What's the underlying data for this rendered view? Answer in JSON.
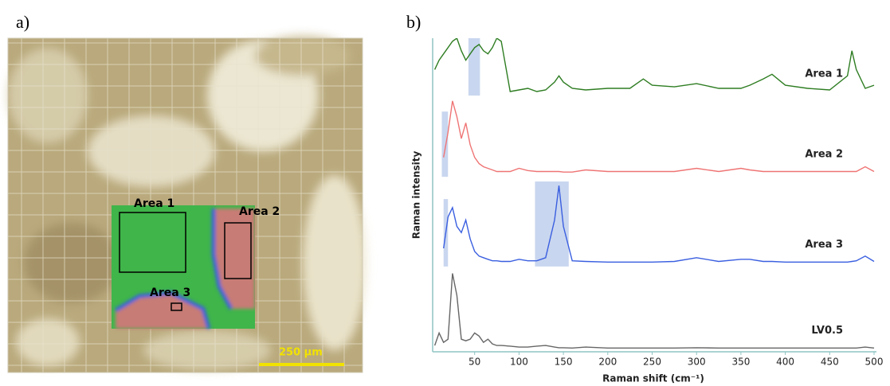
{
  "panel_a": {
    "label": "a)",
    "areas": [
      "Area 1",
      "Area 2",
      "Area 3"
    ],
    "scale_bar": "250 µm"
  },
  "panel_b_label": "b)",
  "chart_data": {
    "type": "line",
    "xlabel": "Raman shift (cm⁻¹)",
    "ylabel": "Raman intensity",
    "xlim": [
      0,
      500
    ],
    "xticks": [
      50,
      100,
      150,
      200,
      250,
      300,
      350,
      400,
      450,
      500
    ],
    "ylim": [
      0,
      100
    ],
    "x": [
      5,
      10,
      15,
      20,
      25,
      30,
      35,
      40,
      45,
      50,
      55,
      60,
      65,
      70,
      75,
      80,
      90,
      100,
      110,
      120,
      130,
      140,
      145,
      150,
      160,
      175,
      200,
      225,
      240,
      250,
      275,
      300,
      325,
      350,
      360,
      375,
      385,
      400,
      425,
      450,
      470,
      475,
      480,
      490,
      500
    ],
    "series": [
      {
        "name": "Area 1",
        "color": "#2e7d22",
        "values": [
          90,
          93,
          95,
          97,
          99,
          100,
          96,
          93,
          95,
          97,
          98,
          96,
          95,
          97,
          100,
          99,
          83,
          83.5,
          84,
          83,
          83.5,
          86,
          88,
          86,
          84,
          83.5,
          84,
          84,
          87,
          85,
          84.5,
          85.5,
          84,
          84,
          85,
          87,
          88.5,
          85,
          84,
          83.5,
          88,
          96,
          90,
          84,
          85
        ]
      },
      {
        "name": "Area 2",
        "color": "#ef7474",
        "values": [
          null,
          null,
          62,
          70,
          80,
          75,
          68,
          73,
          66,
          62,
          60,
          59,
          58.5,
          58,
          57.5,
          57.5,
          57.5,
          58.5,
          57.8,
          57.5,
          57.5,
          57.5,
          57.5,
          57.3,
          57.3,
          58,
          57.5,
          57.5,
          57.5,
          57.5,
          57.5,
          58.5,
          57.5,
          58.5,
          58,
          57.5,
          57.5,
          57.5,
          57.5,
          57.5,
          57.5,
          57.5,
          57.5,
          59,
          57.5
        ]
      },
      {
        "name": "Area 3",
        "color": "#3a5fe0",
        "values": [
          null,
          null,
          33,
          43,
          46,
          40,
          38,
          42,
          36,
          32,
          30.5,
          30,
          29.5,
          29,
          29,
          28.8,
          28.8,
          29.5,
          29,
          29,
          30,
          42,
          53,
          40,
          29,
          28.8,
          28.6,
          28.6,
          28.6,
          28.6,
          28.8,
          30,
          28.8,
          29.5,
          29.5,
          28.8,
          28.8,
          28.6,
          28.6,
          28.6,
          28.6,
          28.8,
          29,
          30.5,
          28.8
        ]
      },
      {
        "name": "LV0.5",
        "color": "#666666",
        "values": [
          2,
          6,
          3,
          4,
          25,
          18,
          4,
          3.5,
          4,
          6,
          5,
          3,
          4,
          2.5,
          2,
          2,
          1.8,
          1.5,
          1.5,
          1.8,
          2,
          1.5,
          1.3,
          1.3,
          1.2,
          1.5,
          1.2,
          1.2,
          1.2,
          1.2,
          1.2,
          1.3,
          1.2,
          1.2,
          1.2,
          1.2,
          1.2,
          1.2,
          1.2,
          1.2,
          1.2,
          1.2,
          1.2,
          1.5,
          1.2
        ]
      }
    ],
    "highlights": [
      {
        "x0": 43,
        "x1": 56,
        "y0": 81.7,
        "y1": 100
      },
      {
        "x0": 13,
        "x1": 20,
        "y0": 55.8,
        "y1": 76.6
      },
      {
        "x0": 15,
        "x1": 20,
        "y0": 27.2,
        "y1": 48.7
      },
      {
        "x0": 118,
        "x1": 156,
        "y0": 27.2,
        "y1": 54.3
      }
    ],
    "highlight_color": "#b7c8ea"
  }
}
